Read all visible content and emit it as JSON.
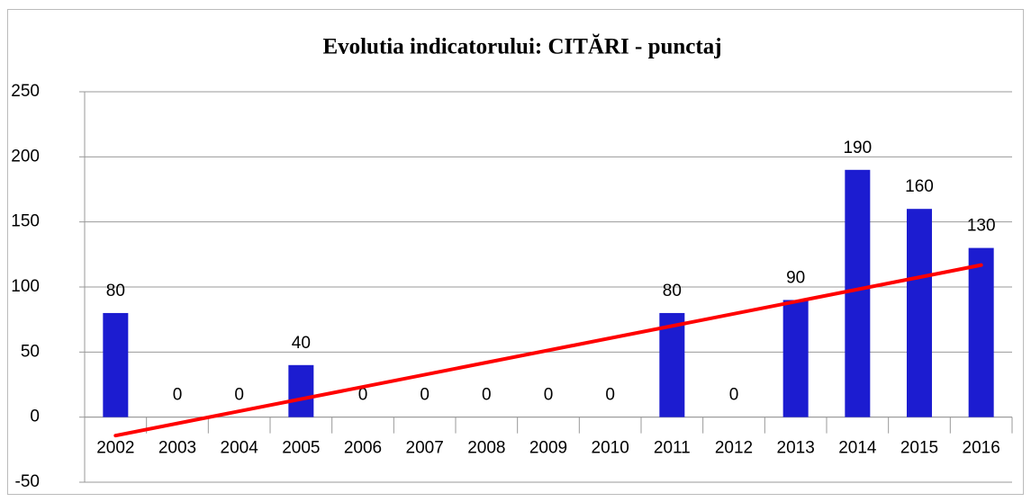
{
  "chart_data": {
    "type": "bar",
    "title": "Evolutia indicatorului: CITĂRI - punctaj",
    "categories": [
      "2002",
      "2003",
      "2004",
      "2005",
      "2006",
      "2007",
      "2008",
      "2009",
      "2010",
      "2011",
      "2012",
      "2013",
      "2014",
      "2015",
      "2016"
    ],
    "values": [
      80,
      0,
      0,
      40,
      0,
      0,
      0,
      0,
      0,
      80,
      0,
      90,
      190,
      160,
      130
    ],
    "color": "#1c1cd0",
    "ylim": [
      -50,
      250
    ],
    "yticks": [
      -50,
      0,
      50,
      100,
      150,
      200,
      250
    ],
    "grid": true,
    "trendline": "linear",
    "trendline_color": "#ff0000"
  }
}
